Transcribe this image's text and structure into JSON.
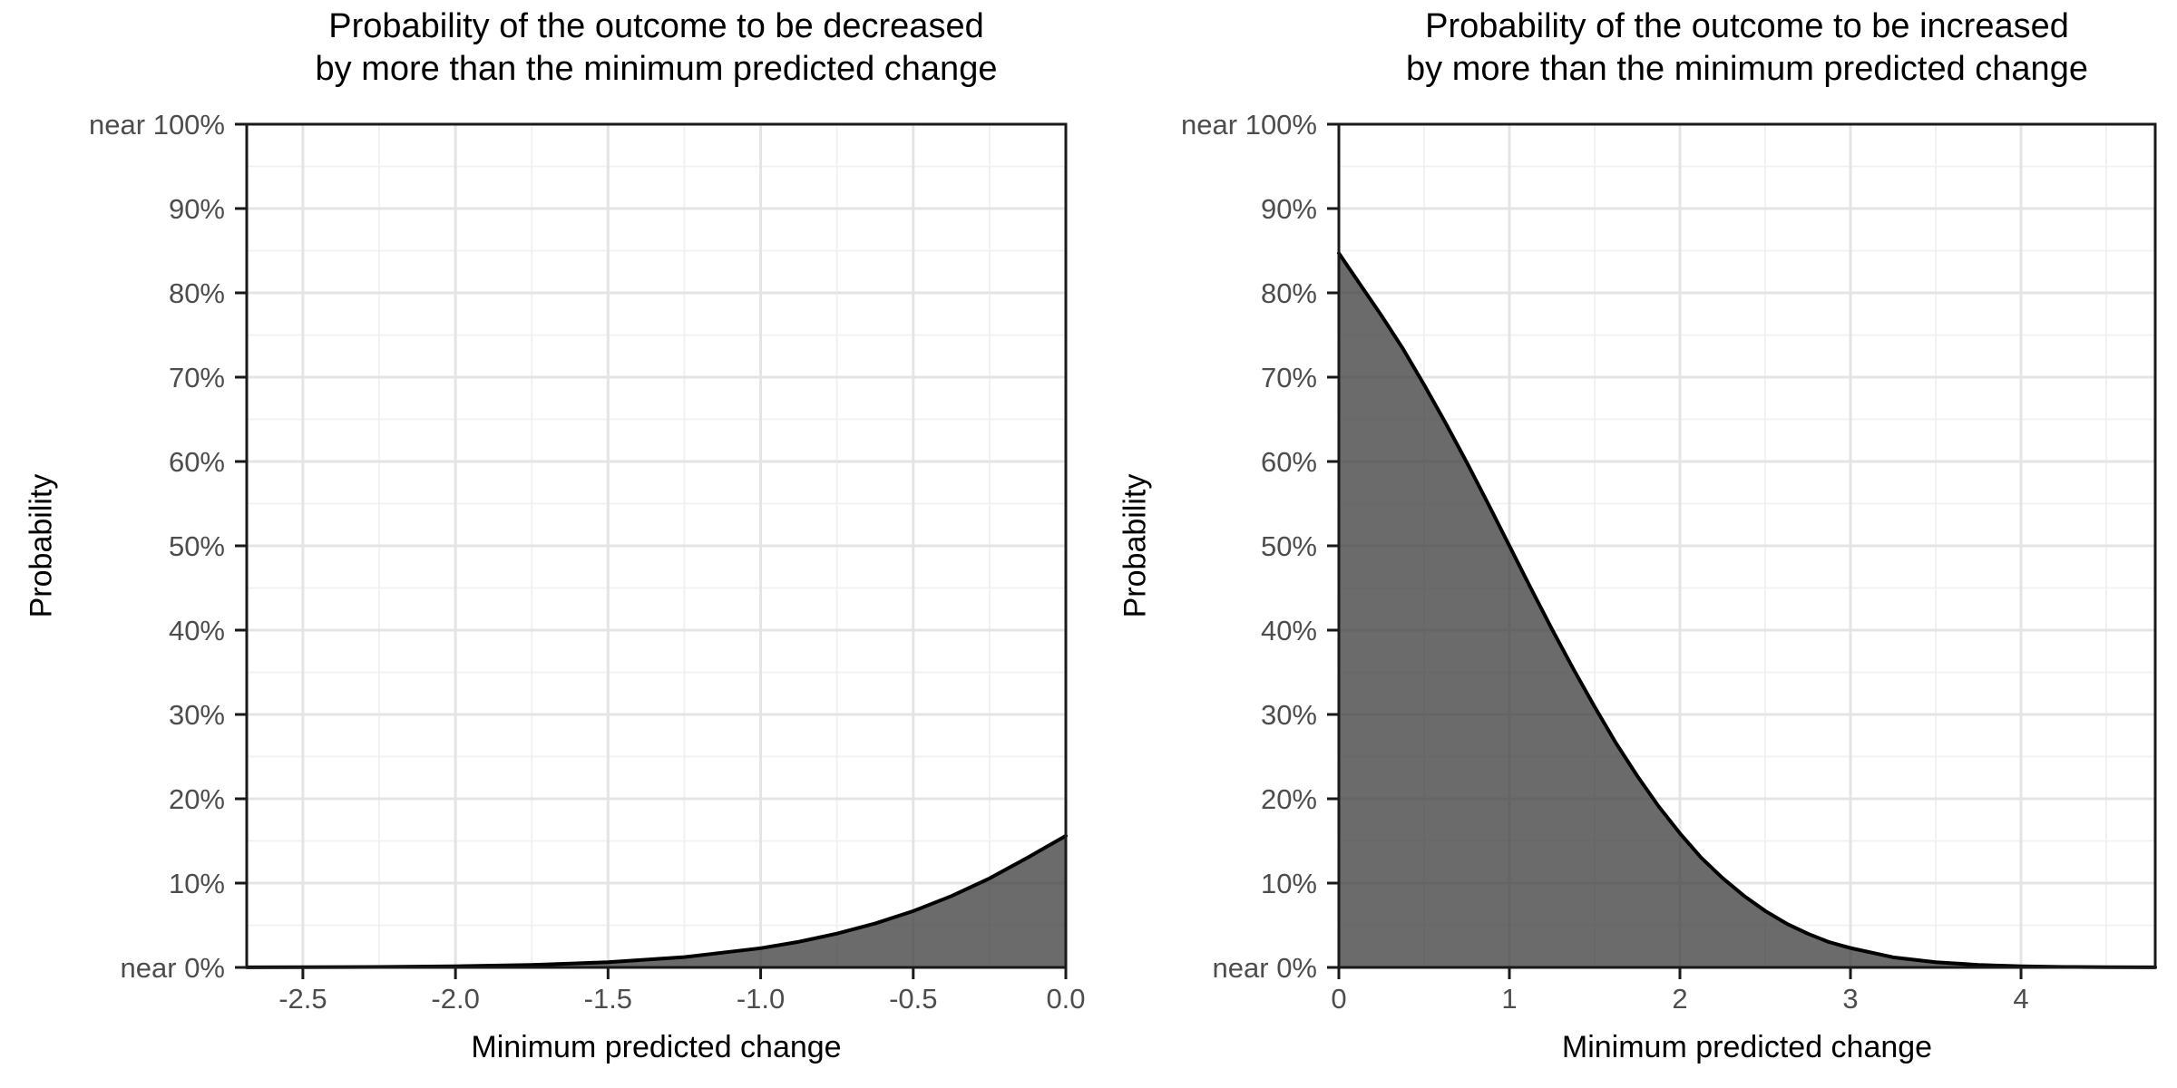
{
  "figure": {
    "background": "#ffffff",
    "description_left_title": "Probability of the outcome to be decreased by more than the minimum predicted change",
    "description_right_title": "Probability of the outcome to be increased by more than the minimum predicted change"
  },
  "style": {
    "fill_color": "#414141",
    "fill_opacity": 0.78,
    "line_color": "#000000",
    "line_width": 4,
    "grid_major_color": "#e4e4e4",
    "grid_minor_color": "#f0f0f0",
    "panel_border_color": "#1a1a1a",
    "tick_color": "#1a1a1a",
    "tick_label_color": "#4d4d4d",
    "axis_title_color": "#000000",
    "title_color": "#000000",
    "panel_background": "#ffffff"
  },
  "chart_data": [
    {
      "type": "area",
      "title_line1": "Probability of the outcome to be decreased",
      "title_line2": "by more than the minimum predicted change",
      "xlabel": "Minimum predicted change",
      "ylabel": "Probability",
      "xlim": [
        -2.684,
        0
      ],
      "ylim": [
        0,
        100
      ],
      "grid": true,
      "legend": false,
      "x_ticks": [
        -2.5,
        -2.0,
        -1.5,
        -1.0,
        -0.5,
        0.0
      ],
      "x_tick_labels": [
        "-2.5",
        "-2.0",
        "-1.5",
        "-1.0",
        "-0.5",
        "0.0"
      ],
      "y_ticks": [
        0,
        10,
        20,
        30,
        40,
        50,
        60,
        70,
        80,
        90,
        100
      ],
      "y_tick_labels": [
        "near 0%",
        "10%",
        "20%",
        "30%",
        "40%",
        "50%",
        "60%",
        "70%",
        "80%",
        "90%",
        "near 100%"
      ],
      "series": [
        {
          "name": "P(outcome decreased by more than minimum predicted change)",
          "x": [
            -2.684,
            -2.5,
            -2.25,
            -2.0,
            -1.75,
            -1.5,
            -1.25,
            -1.0,
            -0.875,
            -0.75,
            -0.625,
            -0.5,
            -0.375,
            -0.25,
            -0.125,
            0
          ],
          "y": [
            0.01,
            0.02,
            0.06,
            0.13,
            0.3,
            0.62,
            1.22,
            2.28,
            3.04,
            4.01,
            5.21,
            6.68,
            8.46,
            10.56,
            13.03,
            15.6
          ]
        }
      ]
    },
    {
      "type": "area",
      "title_line1": "Probability of the outcome to be increased",
      "title_line2": "by more than the minimum predicted change",
      "xlabel": "Minimum predicted change",
      "ylabel": "Probability",
      "xlim": [
        0,
        4.787
      ],
      "ylim": [
        0,
        100
      ],
      "grid": true,
      "legend": false,
      "x_ticks": [
        0,
        1,
        2,
        3,
        4
      ],
      "x_tick_labels": [
        "0",
        "1",
        "2",
        "3",
        "4"
      ],
      "y_ticks": [
        0,
        10,
        20,
        30,
        40,
        50,
        60,
        70,
        80,
        90,
        100
      ],
      "y_tick_labels": [
        "near 0%",
        "10%",
        "20%",
        "30%",
        "40%",
        "50%",
        "60%",
        "70%",
        "80%",
        "90%",
        "near 100%"
      ],
      "series": [
        {
          "name": "P(outcome increased by more than minimum predicted change)",
          "x": [
            0,
            0.125,
            0.25,
            0.375,
            0.5,
            0.625,
            0.75,
            0.875,
            1.0,
            1.125,
            1.25,
            1.375,
            1.5,
            1.625,
            1.75,
            1.875,
            2.0,
            2.125,
            2.25,
            2.375,
            2.5,
            2.625,
            2.75,
            2.875,
            3.0,
            3.25,
            3.5,
            3.75,
            4.0,
            4.25,
            4.5,
            4.787
          ],
          "y": [
            84.7,
            81.0,
            77.3,
            73.4,
            69.1,
            64.6,
            59.9,
            55.0,
            50.0,
            45.0,
            40.1,
            35.4,
            30.9,
            26.6,
            22.7,
            19.1,
            15.9,
            13.0,
            10.6,
            8.5,
            6.7,
            5.2,
            4.0,
            3.0,
            2.3,
            1.2,
            0.62,
            0.3,
            0.13,
            0.06,
            0.02,
            0.01
          ]
        }
      ]
    }
  ]
}
